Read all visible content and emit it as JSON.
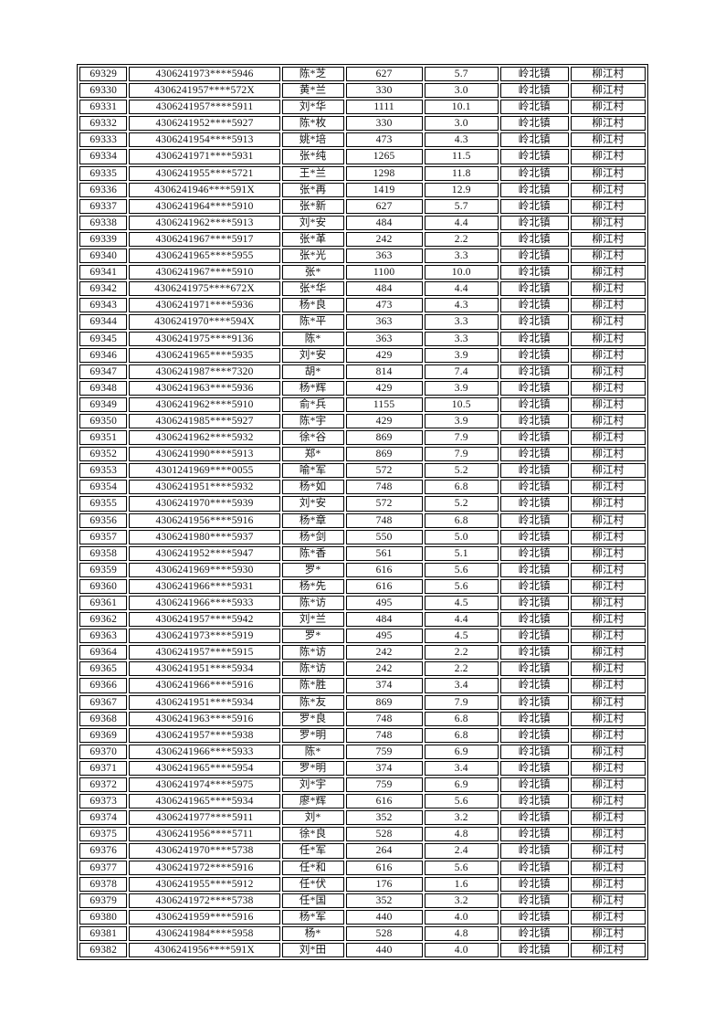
{
  "colors": {
    "background": "#ffffff",
    "border": "#000000",
    "text": "#111111"
  },
  "table": {
    "rows": [
      [
        "69329",
        "4306241973****5946",
        "陈*芝",
        "627",
        "5.7",
        "岭北镇",
        "柳江村"
      ],
      [
        "69330",
        "4306241957****572X",
        "黄*兰",
        "330",
        "3.0",
        "岭北镇",
        "柳江村"
      ],
      [
        "69331",
        "4306241957****5911",
        "刘*华",
        "1111",
        "10.1",
        "岭北镇",
        "柳江村"
      ],
      [
        "69332",
        "4306241952****5927",
        "陈*枚",
        "330",
        "3.0",
        "岭北镇",
        "柳江村"
      ],
      [
        "69333",
        "4306241954****5913",
        "姚*培",
        "473",
        "4.3",
        "岭北镇",
        "柳江村"
      ],
      [
        "69334",
        "4306241971****5931",
        "张*纯",
        "1265",
        "11.5",
        "岭北镇",
        "柳江村"
      ],
      [
        "69335",
        "4306241955****5721",
        "王*兰",
        "1298",
        "11.8",
        "岭北镇",
        "柳江村"
      ],
      [
        "69336",
        "4306241946****591X",
        "张*再",
        "1419",
        "12.9",
        "岭北镇",
        "柳江村"
      ],
      [
        "69337",
        "4306241964****5910",
        "张*新",
        "627",
        "5.7",
        "岭北镇",
        "柳江村"
      ],
      [
        "69338",
        "4306241962****5913",
        "刘*安",
        "484",
        "4.4",
        "岭北镇",
        "柳江村"
      ],
      [
        "69339",
        "4306241967****5917",
        "张*革",
        "242",
        "2.2",
        "岭北镇",
        "柳江村"
      ],
      [
        "69340",
        "4306241965****5955",
        "张*光",
        "363",
        "3.3",
        "岭北镇",
        "柳江村"
      ],
      [
        "69341",
        "4306241967****5910",
        "张*",
        "1100",
        "10.0",
        "岭北镇",
        "柳江村"
      ],
      [
        "69342",
        "4306241975****672X",
        "张*华",
        "484",
        "4.4",
        "岭北镇",
        "柳江村"
      ],
      [
        "69343",
        "4306241971****5936",
        "杨*良",
        "473",
        "4.3",
        "岭北镇",
        "柳江村"
      ],
      [
        "69344",
        "4306241970****594X",
        "陈*平",
        "363",
        "3.3",
        "岭北镇",
        "柳江村"
      ],
      [
        "69345",
        "4306241975****9136",
        "陈*",
        "363",
        "3.3",
        "岭北镇",
        "柳江村"
      ],
      [
        "69346",
        "4306241965****5935",
        "刘*安",
        "429",
        "3.9",
        "岭北镇",
        "柳江村"
      ],
      [
        "69347",
        "4306241987****7320",
        "胡*",
        "814",
        "7.4",
        "岭北镇",
        "柳江村"
      ],
      [
        "69348",
        "4306241963****5936",
        "杨*辉",
        "429",
        "3.9",
        "岭北镇",
        "柳江村"
      ],
      [
        "69349",
        "4306241962****5910",
        "俞*兵",
        "1155",
        "10.5",
        "岭北镇",
        "柳江村"
      ],
      [
        "69350",
        "4306241985****5927",
        "陈*宇",
        "429",
        "3.9",
        "岭北镇",
        "柳江村"
      ],
      [
        "69351",
        "4306241962****5932",
        "徐*谷",
        "869",
        "7.9",
        "岭北镇",
        "柳江村"
      ],
      [
        "69352",
        "4306241990****5913",
        "郑*",
        "869",
        "7.9",
        "岭北镇",
        "柳江村"
      ],
      [
        "69353",
        "4301241969****0055",
        "喻*军",
        "572",
        "5.2",
        "岭北镇",
        "柳江村"
      ],
      [
        "69354",
        "4306241951****5932",
        "杨*如",
        "748",
        "6.8",
        "岭北镇",
        "柳江村"
      ],
      [
        "69355",
        "4306241970****5939",
        "刘*安",
        "572",
        "5.2",
        "岭北镇",
        "柳江村"
      ],
      [
        "69356",
        "4306241956****5916",
        "杨*章",
        "748",
        "6.8",
        "岭北镇",
        "柳江村"
      ],
      [
        "69357",
        "4306241980****5937",
        "杨*剑",
        "550",
        "5.0",
        "岭北镇",
        "柳江村"
      ],
      [
        "69358",
        "4306241952****5947",
        "陈*香",
        "561",
        "5.1",
        "岭北镇",
        "柳江村"
      ],
      [
        "69359",
        "4306241969****5930",
        "罗*",
        "616",
        "5.6",
        "岭北镇",
        "柳江村"
      ],
      [
        "69360",
        "4306241966****5931",
        "杨*先",
        "616",
        "5.6",
        "岭北镇",
        "柳江村"
      ],
      [
        "69361",
        "4306241966****5933",
        "陈*访",
        "495",
        "4.5",
        "岭北镇",
        "柳江村"
      ],
      [
        "69362",
        "4306241957****5942",
        "刘*兰",
        "484",
        "4.4",
        "岭北镇",
        "柳江村"
      ],
      [
        "69363",
        "4306241973****5919",
        "罗*",
        "495",
        "4.5",
        "岭北镇",
        "柳江村"
      ],
      [
        "69364",
        "4306241957****5915",
        "陈*访",
        "242",
        "2.2",
        "岭北镇",
        "柳江村"
      ],
      [
        "69365",
        "4306241951****5934",
        "陈*访",
        "242",
        "2.2",
        "岭北镇",
        "柳江村"
      ],
      [
        "69366",
        "4306241966****5916",
        "陈*胜",
        "374",
        "3.4",
        "岭北镇",
        "柳江村"
      ],
      [
        "69367",
        "4306241951****5934",
        "陈*友",
        "869",
        "7.9",
        "岭北镇",
        "柳江村"
      ],
      [
        "69368",
        "4306241963****5916",
        "罗*良",
        "748",
        "6.8",
        "岭北镇",
        "柳江村"
      ],
      [
        "69369",
        "4306241957****5938",
        "罗*明",
        "748",
        "6.8",
        "岭北镇",
        "柳江村"
      ],
      [
        "69370",
        "4306241966****5933",
        "陈*",
        "759",
        "6.9",
        "岭北镇",
        "柳江村"
      ],
      [
        "69371",
        "4306241965****5954",
        "罗*明",
        "374",
        "3.4",
        "岭北镇",
        "柳江村"
      ],
      [
        "69372",
        "4306241974****5975",
        "刘*宇",
        "759",
        "6.9",
        "岭北镇",
        "柳江村"
      ],
      [
        "69373",
        "4306241965****5934",
        "廖*辉",
        "616",
        "5.6",
        "岭北镇",
        "柳江村"
      ],
      [
        "69374",
        "4306241977****5911",
        "刘*",
        "352",
        "3.2",
        "岭北镇",
        "柳江村"
      ],
      [
        "69375",
        "4306241956****5711",
        "徐*良",
        "528",
        "4.8",
        "岭北镇",
        "柳江村"
      ],
      [
        "69376",
        "4306241970****5738",
        "任*军",
        "264",
        "2.4",
        "岭北镇",
        "柳江村"
      ],
      [
        "69377",
        "4306241972****5916",
        "任*和",
        "616",
        "5.6",
        "岭北镇",
        "柳江村"
      ],
      [
        "69378",
        "4306241955****5912",
        "任*伏",
        "176",
        "1.6",
        "岭北镇",
        "柳江村"
      ],
      [
        "69379",
        "4306241972****5738",
        "任*国",
        "352",
        "3.2",
        "岭北镇",
        "柳江村"
      ],
      [
        "69380",
        "4306241959****5916",
        "杨*军",
        "440",
        "4.0",
        "岭北镇",
        "柳江村"
      ],
      [
        "69381",
        "4306241984****5958",
        "杨*",
        "528",
        "4.8",
        "岭北镇",
        "柳江村"
      ],
      [
        "69382",
        "4306241956****591X",
        "刘*田",
        "440",
        "4.0",
        "岭北镇",
        "柳江村"
      ]
    ]
  }
}
